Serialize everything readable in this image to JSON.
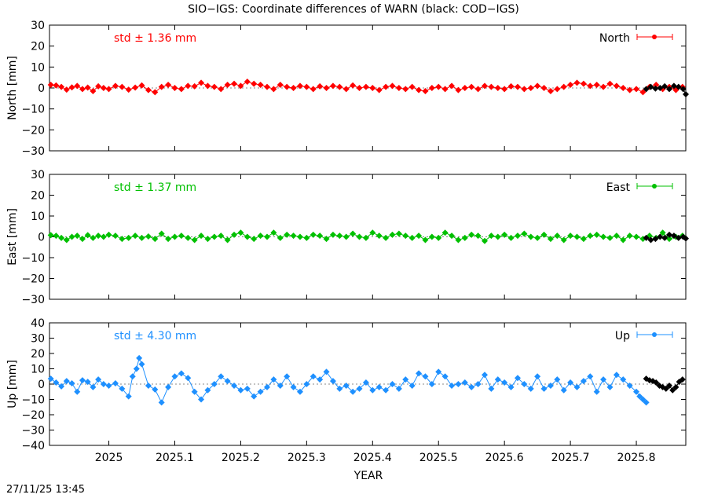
{
  "figure": {
    "title": "SIO−IGS: Coordinate differences of WARN (black: COD−IGS)",
    "timestamp": "27/11/25 13:45",
    "xlabel": "YEAR"
  },
  "colors": {
    "north": "#ff0000",
    "east": "#00c000",
    "up": "#1e90ff",
    "cod": "#000000",
    "axis": "#000000",
    "zero_line": "#888888"
  },
  "chart_data": [
    {
      "type": "scatter",
      "panel": "north",
      "ylabel": "North [mm]",
      "legend": "North",
      "legend_position": "top-right",
      "std_label": "std ± 1.36 mm",
      "xlim": [
        2024.91,
        2025.875
      ],
      "ylim": [
        -30,
        30
      ],
      "x_ticks": [
        2025,
        2025.1,
        2025.2,
        2025.3,
        2025.4,
        2025.5,
        2025.6,
        2025.7,
        2025.8
      ],
      "x_tick_labels": [
        "2025",
        "2025.1",
        "2025.2",
        "2025.3",
        "2025.4",
        "2025.5",
        "2025.6",
        "2025.7",
        "2025.8"
      ],
      "y_ticks": [
        -30,
        -20,
        -10,
        0,
        10,
        20,
        30
      ],
      "y_tick_labels": [
        "−30",
        "−20",
        "−10",
        "0",
        "10",
        "20",
        "30"
      ],
      "series": [
        {
          "name": "North",
          "color": "#ff0000",
          "x": [
            2024.912,
            2024.92,
            2024.928,
            2024.936,
            2024.944,
            2024.952,
            2024.96,
            2024.968,
            2024.976,
            2024.984,
            2024.992,
            2025.0,
            2025.01,
            2025.02,
            2025.03,
            2025.04,
            2025.05,
            2025.06,
            2025.07,
            2025.08,
            2025.09,
            2025.1,
            2025.11,
            2025.12,
            2025.13,
            2025.14,
            2025.15,
            2025.16,
            2025.17,
            2025.18,
            2025.19,
            2025.2,
            2025.21,
            2025.22,
            2025.23,
            2025.24,
            2025.25,
            2025.26,
            2025.27,
            2025.28,
            2025.29,
            2025.3,
            2025.31,
            2025.32,
            2025.33,
            2025.34,
            2025.35,
            2025.36,
            2025.37,
            2025.38,
            2025.39,
            2025.4,
            2025.41,
            2025.42,
            2025.43,
            2025.44,
            2025.45,
            2025.46,
            2025.47,
            2025.48,
            2025.49,
            2025.5,
            2025.51,
            2025.52,
            2025.53,
            2025.54,
            2025.55,
            2025.56,
            2025.57,
            2025.58,
            2025.59,
            2025.6,
            2025.61,
            2025.62,
            2025.63,
            2025.64,
            2025.65,
            2025.66,
            2025.67,
            2025.68,
            2025.69,
            2025.7,
            2025.71,
            2025.72,
            2025.73,
            2025.74,
            2025.75,
            2025.76,
            2025.77,
            2025.78,
            2025.79,
            2025.8,
            2025.81,
            2025.82,
            2025.83,
            2025.84,
            2025.85,
            2025.86,
            2025.87
          ],
          "y": [
            1.5,
            1.2,
            0.5,
            -0.8,
            0.3,
            1.0,
            -0.5,
            0.2,
            -1.5,
            0.8,
            0.0,
            -0.5,
            1.0,
            0.5,
            -0.8,
            0.2,
            1.2,
            -1.0,
            -2.0,
            0.5,
            1.5,
            0.0,
            -0.5,
            1.0,
            0.8,
            2.5,
            1.0,
            0.5,
            -0.5,
            1.5,
            2.0,
            1.0,
            3.0,
            2.0,
            1.5,
            0.5,
            -0.5,
            1.5,
            0.5,
            0.0,
            1.0,
            0.5,
            -0.5,
            0.8,
            0.0,
            1.0,
            0.5,
            -0.5,
            1.2,
            0.0,
            0.5,
            0.0,
            -1.0,
            0.5,
            1.0,
            0.0,
            -0.5,
            0.5,
            -1.0,
            -1.5,
            0.0,
            0.5,
            -0.5,
            1.0,
            -1.0,
            0.0,
            0.5,
            -0.5,
            1.0,
            0.5,
            0.0,
            -0.5,
            0.8,
            0.5,
            -0.5,
            0.0,
            1.0,
            0.0,
            -1.5,
            -0.5,
            0.5,
            1.5,
            2.5,
            2.0,
            1.0,
            1.5,
            0.5,
            2.0,
            1.0,
            0.0,
            -1.0,
            -0.5,
            -2.0,
            0.5,
            1.5,
            -0.5,
            0.5,
            -1.0,
            0.5
          ]
        },
        {
          "name": "COD−IGS",
          "color": "#000000",
          "x": [
            2025.815,
            2025.822,
            2025.829,
            2025.836,
            2025.843,
            2025.85,
            2025.857,
            2025.864,
            2025.871,
            2025.875
          ],
          "y": [
            -0.5,
            0.5,
            -0.3,
            0.0,
            0.8,
            -0.5,
            1.0,
            0.5,
            -0.5,
            -3.0
          ]
        }
      ]
    },
    {
      "type": "scatter",
      "panel": "east",
      "ylabel": "East [mm]",
      "legend": "East",
      "legend_position": "top-right",
      "std_label": "std ± 1.37 mm",
      "xlim": [
        2024.91,
        2025.875
      ],
      "ylim": [
        -30,
        30
      ],
      "x_ticks": [
        2025,
        2025.1,
        2025.2,
        2025.3,
        2025.4,
        2025.5,
        2025.6,
        2025.7,
        2025.8
      ],
      "x_tick_labels": [
        "2025",
        "2025.1",
        "2025.2",
        "2025.3",
        "2025.4",
        "2025.5",
        "2025.6",
        "2025.7",
        "2025.8"
      ],
      "y_ticks": [
        -30,
        -20,
        -10,
        0,
        10,
        20,
        30
      ],
      "y_tick_labels": [
        "−30",
        "−20",
        "−10",
        "0",
        "10",
        "20",
        "30"
      ],
      "series": [
        {
          "name": "East",
          "color": "#00c000",
          "x": [
            2024.912,
            2024.92,
            2024.928,
            2024.936,
            2024.944,
            2024.952,
            2024.96,
            2024.968,
            2024.976,
            2024.984,
            2024.992,
            2025.0,
            2025.01,
            2025.02,
            2025.03,
            2025.04,
            2025.05,
            2025.06,
            2025.07,
            2025.08,
            2025.09,
            2025.1,
            2025.11,
            2025.12,
            2025.13,
            2025.14,
            2025.15,
            2025.16,
            2025.17,
            2025.18,
            2025.19,
            2025.2,
            2025.21,
            2025.22,
            2025.23,
            2025.24,
            2025.25,
            2025.26,
            2025.27,
            2025.28,
            2025.29,
            2025.3,
            2025.31,
            2025.32,
            2025.33,
            2025.34,
            2025.35,
            2025.36,
            2025.37,
            2025.38,
            2025.39,
            2025.4,
            2025.41,
            2025.42,
            2025.43,
            2025.44,
            2025.45,
            2025.46,
            2025.47,
            2025.48,
            2025.49,
            2025.5,
            2025.51,
            2025.52,
            2025.53,
            2025.54,
            2025.55,
            2025.56,
            2025.57,
            2025.58,
            2025.59,
            2025.6,
            2025.61,
            2025.62,
            2025.63,
            2025.64,
            2025.65,
            2025.66,
            2025.67,
            2025.68,
            2025.69,
            2025.7,
            2025.71,
            2025.72,
            2025.73,
            2025.74,
            2025.75,
            2025.76,
            2025.77,
            2025.78,
            2025.79,
            2025.8,
            2025.81,
            2025.82,
            2025.83,
            2025.84,
            2025.85,
            2025.86,
            2025.87
          ],
          "y": [
            0.8,
            0.5,
            -0.5,
            -1.5,
            0.0,
            0.5,
            -1.0,
            0.8,
            -0.5,
            0.5,
            0.0,
            1.0,
            0.5,
            -1.0,
            -0.5,
            0.5,
            -0.5,
            0.2,
            -1.0,
            1.5,
            -1.0,
            0.0,
            0.5,
            -0.5,
            -1.5,
            0.5,
            -1.0,
            0.0,
            0.5,
            -1.5,
            1.0,
            2.0,
            0.0,
            -1.0,
            0.5,
            0.0,
            2.0,
            -0.5,
            1.0,
            0.5,
            0.0,
            -0.5,
            1.0,
            0.5,
            -1.0,
            1.0,
            0.5,
            0.0,
            1.5,
            0.0,
            -0.5,
            2.0,
            0.5,
            -0.5,
            1.0,
            1.5,
            0.5,
            -0.5,
            0.5,
            -1.5,
            0.0,
            -0.5,
            2.0,
            0.5,
            -1.5,
            -0.5,
            1.0,
            0.5,
            -2.0,
            0.5,
            0.0,
            1.0,
            -0.5,
            0.5,
            1.5,
            0.0,
            -0.5,
            1.0,
            -1.0,
            0.5,
            -1.5,
            0.5,
            0.0,
            -1.0,
            0.5,
            1.0,
            0.0,
            -0.5,
            0.5,
            -1.5,
            0.5,
            0.0,
            -1.0,
            0.5,
            -0.5,
            2.0,
            -1.0,
            0.0,
            0.5
          ]
        },
        {
          "name": "COD−IGS",
          "color": "#000000",
          "x": [
            2025.815,
            2025.822,
            2025.829,
            2025.836,
            2025.843,
            2025.85,
            2025.857,
            2025.864,
            2025.871,
            2025.875
          ],
          "y": [
            -0.5,
            -1.5,
            -1.0,
            0.0,
            -0.5,
            1.0,
            0.5,
            -0.5,
            0.0,
            -0.8
          ]
        }
      ]
    },
    {
      "type": "scatter",
      "panel": "up",
      "ylabel": "Up [mm]",
      "legend": "Up",
      "legend_position": "top-right",
      "std_label": "std ± 4.30 mm",
      "xlim": [
        2024.91,
        2025.875
      ],
      "ylim": [
        -40,
        40
      ],
      "x_ticks": [
        2025,
        2025.1,
        2025.2,
        2025.3,
        2025.4,
        2025.5,
        2025.6,
        2025.7,
        2025.8
      ],
      "x_tick_labels": [
        "2025",
        "2025.1",
        "2025.2",
        "2025.3",
        "2025.4",
        "2025.5",
        "2025.6",
        "2025.7",
        "2025.8"
      ],
      "y_ticks": [
        -40,
        -30,
        -20,
        -10,
        0,
        10,
        20,
        30,
        40
      ],
      "y_tick_labels": [
        "−40",
        "−30",
        "−20",
        "−10",
        "0",
        "10",
        "20",
        "30",
        "40"
      ],
      "series": [
        {
          "name": "Up",
          "color": "#1e90ff",
          "x": [
            2024.912,
            2024.92,
            2024.928,
            2024.936,
            2024.944,
            2024.952,
            2024.96,
            2024.968,
            2024.976,
            2024.984,
            2024.992,
            2025.0,
            2025.01,
            2025.02,
            2025.03,
            2025.036,
            2025.042,
            2025.046,
            2025.05,
            2025.06,
            2025.07,
            2025.08,
            2025.09,
            2025.1,
            2025.11,
            2025.12,
            2025.13,
            2025.14,
            2025.15,
            2025.16,
            2025.17,
            2025.18,
            2025.19,
            2025.2,
            2025.21,
            2025.22,
            2025.23,
            2025.24,
            2025.25,
            2025.26,
            2025.27,
            2025.28,
            2025.29,
            2025.3,
            2025.31,
            2025.32,
            2025.33,
            2025.34,
            2025.35,
            2025.36,
            2025.37,
            2025.38,
            2025.39,
            2025.4,
            2025.41,
            2025.42,
            2025.43,
            2025.44,
            2025.45,
            2025.46,
            2025.47,
            2025.48,
            2025.49,
            2025.5,
            2025.51,
            2025.52,
            2025.53,
            2025.54,
            2025.55,
            2025.56,
            2025.57,
            2025.58,
            2025.59,
            2025.6,
            2025.61,
            2025.62,
            2025.63,
            2025.64,
            2025.65,
            2025.66,
            2025.67,
            2025.68,
            2025.69,
            2025.7,
            2025.71,
            2025.72,
            2025.73,
            2025.74,
            2025.75,
            2025.76,
            2025.77,
            2025.78,
            2025.79,
            2025.8,
            2025.805,
            2025.81,
            2025.815
          ],
          "y": [
            3.5,
            1.0,
            -1.5,
            2.0,
            0.5,
            -5.0,
            2.5,
            1.5,
            -2.0,
            3.0,
            0.0,
            -1.0,
            0.5,
            -3.0,
            -8.0,
            5.0,
            10.0,
            17.0,
            13.0,
            -1.0,
            -3.5,
            -12.0,
            -2.0,
            5.0,
            7.0,
            4.0,
            -5.0,
            -10.0,
            -4.0,
            0.0,
            5.0,
            2.0,
            -1.0,
            -4.0,
            -3.0,
            -8.0,
            -5.0,
            -2.0,
            3.0,
            -1.0,
            5.0,
            -2.0,
            -5.0,
            0.0,
            5.0,
            3.0,
            8.0,
            2.0,
            -3.0,
            -1.0,
            -5.0,
            -3.0,
            1.0,
            -4.0,
            -2.0,
            -4.0,
            0.0,
            -3.0,
            3.0,
            -1.0,
            7.0,
            5.0,
            0.0,
            8.0,
            5.0,
            -1.0,
            0.0,
            1.0,
            -2.0,
            0.0,
            6.0,
            -3.0,
            3.0,
            1.0,
            -2.0,
            4.0,
            0.0,
            -3.0,
            5.0,
            -3.0,
            -1.0,
            3.0,
            -4.0,
            1.0,
            -2.0,
            2.0,
            5.0,
            -5.0,
            3.0,
            -2.0,
            6.0,
            3.0,
            -1.0,
            -5.0,
            -8.0,
            -10.0,
            -12.0
          ]
        },
        {
          "name": "COD−IGS",
          "color": "#000000",
          "x": [
            2025.815,
            2025.82,
            2025.825,
            2025.83,
            2025.835,
            2025.84,
            2025.845,
            2025.85,
            2025.855,
            2025.86,
            2025.865,
            2025.87
          ],
          "y": [
            3.5,
            2.5,
            2.0,
            1.0,
            -1.0,
            -2.0,
            -3.0,
            -1.0,
            -4.0,
            -2.0,
            1.5,
            3.0
          ]
        }
      ]
    }
  ]
}
